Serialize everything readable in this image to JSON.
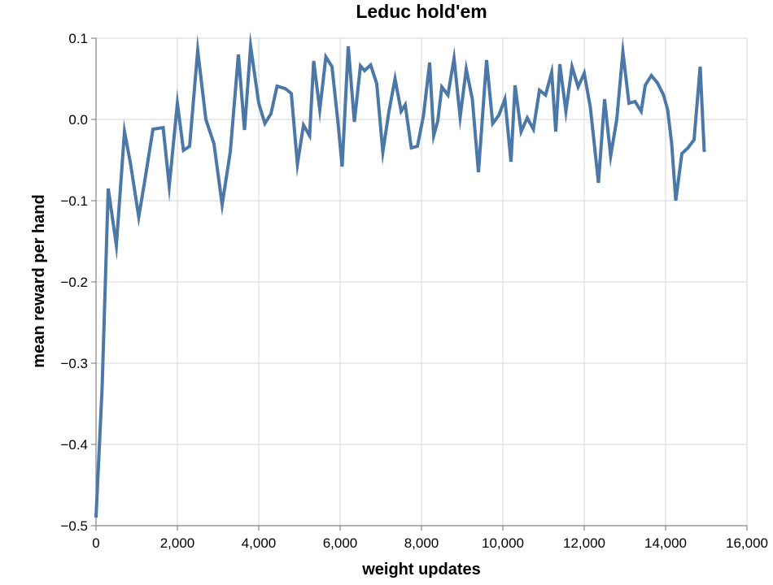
{
  "chart_data": {
    "type": "line",
    "title": "Leduc hold'em",
    "xlabel": "weight updates",
    "ylabel": "mean reward per hand",
    "xlim": [
      0,
      16000
    ],
    "ylim": [
      -0.5,
      0.1
    ],
    "x_ticks": [
      0,
      2000,
      4000,
      6000,
      8000,
      10000,
      12000,
      14000,
      16000
    ],
    "x_tick_labels": [
      "0",
      "2,000",
      "4,000",
      "6,000",
      "8,000",
      "10,000",
      "12,000",
      "14,000",
      "16,000"
    ],
    "y_ticks": [
      -0.5,
      -0.4,
      -0.3,
      -0.2,
      -0.1,
      0.0,
      0.1
    ],
    "y_tick_labels": [
      "−0.5",
      "−0.4",
      "−0.3",
      "−0.2",
      "−0.1",
      "0.0",
      "0.1"
    ],
    "grid": true,
    "color": "#4c78a8",
    "series": [
      {
        "x": [
          0,
          150,
          300,
          500,
          700,
          850,
          1050,
          1200,
          1400,
          1650,
          1800,
          2000,
          2150,
          2300,
          2500,
          2700,
          2900,
          3100,
          3300,
          3500,
          3650,
          3800,
          4000,
          4150,
          4300,
          4450,
          4650,
          4800,
          4950,
          5100,
          5250,
          5350,
          5500,
          5650,
          5800,
          5950,
          6050,
          6200,
          6350,
          6500,
          6600,
          6750,
          6900,
          7050,
          7200,
          7350,
          7500,
          7600,
          7750,
          7900,
          8050,
          8200,
          8300,
          8400,
          8500,
          8650,
          8800,
          8950,
          9100,
          9250,
          9400,
          9600,
          9750,
          9900,
          10050,
          10200,
          10300,
          10450,
          10600,
          10750,
          10900,
          11050,
          11200,
          11300,
          11400,
          11550,
          11700,
          11850,
          12000,
          12150,
          12350,
          12500,
          12650,
          12800,
          12950,
          13100,
          13250,
          13400,
          13500,
          13650,
          13800,
          13950,
          14050,
          14150,
          14250,
          14400,
          14550,
          14700,
          14850,
          14950
        ],
        "y": [
          -0.49,
          -0.33,
          -0.085,
          -0.155,
          -0.015,
          -0.055,
          -0.12,
          -0.075,
          -0.012,
          -0.01,
          -0.082,
          0.02,
          -0.038,
          -0.033,
          0.085,
          0.0,
          -0.03,
          -0.105,
          -0.04,
          0.08,
          -0.013,
          0.09,
          0.02,
          -0.005,
          0.007,
          0.041,
          0.038,
          0.032,
          -0.055,
          -0.007,
          -0.02,
          0.072,
          0.012,
          0.077,
          0.065,
          -0.005,
          -0.058,
          0.09,
          -0.003,
          0.066,
          0.06,
          0.067,
          0.044,
          -0.04,
          0.01,
          0.05,
          0.01,
          0.018,
          -0.035,
          -0.033,
          0.005,
          0.07,
          -0.02,
          -0.002,
          0.04,
          0.03,
          0.075,
          0.003,
          0.062,
          0.025,
          -0.065,
          0.073,
          -0.005,
          0.005,
          0.025,
          -0.052,
          0.042,
          -0.015,
          0.002,
          -0.012,
          0.036,
          0.03,
          0.058,
          -0.015,
          0.068,
          0.01,
          0.065,
          0.04,
          0.057,
          0.015,
          -0.078,
          0.025,
          -0.045,
          0.0,
          0.083,
          0.02,
          0.022,
          0.01,
          0.042,
          0.054,
          0.045,
          0.03,
          0.012,
          -0.03,
          -0.1,
          -0.042,
          -0.035,
          -0.025,
          0.065,
          -0.04
        ]
      }
    ]
  }
}
